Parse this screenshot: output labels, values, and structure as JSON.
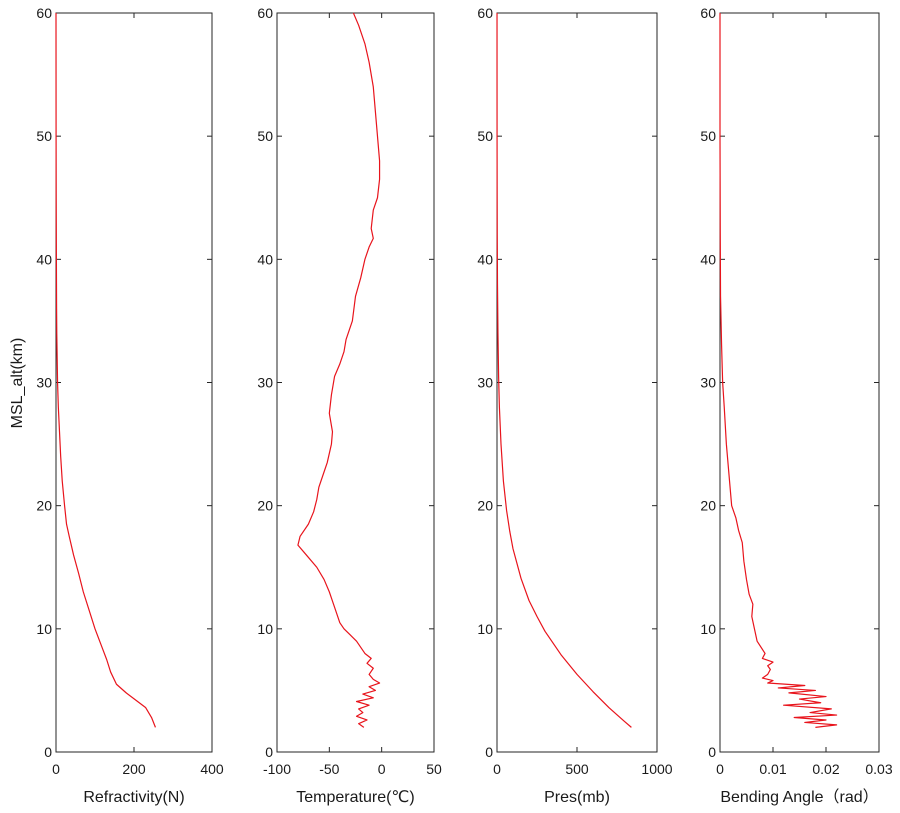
{
  "colors": {
    "line": "#e8141c",
    "axis": "#262626"
  },
  "shared_ylabel": "MSL_alt(km)",
  "chart_data": [
    {
      "type": "line",
      "xlabel": "Refractivity(N)",
      "ylabel": "MSL_alt(km)",
      "xlim": [
        0,
        400
      ],
      "ylim": [
        0,
        60
      ],
      "xticks": [
        0,
        200,
        400
      ],
      "xtick_labels": [
        "0",
        "200",
        "400"
      ],
      "yticks": [
        0,
        10,
        20,
        30,
        40,
        50,
        60
      ],
      "ytick_labels": [
        "0",
        "10",
        "20",
        "30",
        "40",
        "50",
        "60"
      ],
      "points": [
        [
          255,
          2
        ],
        [
          245,
          2.8
        ],
        [
          230,
          3.6
        ],
        [
          205,
          4.2
        ],
        [
          180,
          4.8
        ],
        [
          155,
          5.5
        ],
        [
          140,
          6.5
        ],
        [
          130,
          7.5
        ],
        [
          118,
          8.5
        ],
        [
          100,
          10
        ],
        [
          85,
          11.5
        ],
        [
          70,
          13
        ],
        [
          58,
          14.5
        ],
        [
          45,
          16
        ],
        [
          34,
          17.5
        ],
        [
          27,
          18.5
        ],
        [
          22,
          20
        ],
        [
          16,
          22
        ],
        [
          12,
          24
        ],
        [
          9,
          26
        ],
        [
          6,
          28
        ],
        [
          4,
          30
        ],
        [
          3,
          32
        ],
        [
          2,
          34
        ],
        [
          1.5,
          36
        ],
        [
          1,
          40
        ],
        [
          0.5,
          45
        ],
        [
          0.2,
          50
        ],
        [
          0.1,
          55
        ],
        [
          0,
          60
        ]
      ]
    },
    {
      "type": "line",
      "xlabel": "Temperature(℃)",
      "ylabel": "",
      "xlim": [
        -100,
        50
      ],
      "ylim": [
        0,
        60
      ],
      "xticks": [
        -100,
        -50,
        0,
        50
      ],
      "xtick_labels": [
        "-100",
        "-50",
        "0",
        "50"
      ],
      "yticks": [
        0,
        10,
        20,
        30,
        40,
        50,
        60
      ],
      "ytick_labels": [
        "0",
        "10",
        "20",
        "30",
        "40",
        "50",
        "60"
      ],
      "points": [
        [
          -17,
          2
        ],
        [
          -22,
          2.3
        ],
        [
          -14,
          2.6
        ],
        [
          -24,
          2.9
        ],
        [
          -18,
          3.2
        ],
        [
          -22,
          3.5
        ],
        [
          -12,
          3.8
        ],
        [
          -24,
          4.1
        ],
        [
          -8,
          4.4
        ],
        [
          -18,
          4.7
        ],
        [
          -6,
          5.0
        ],
        [
          -12,
          5.3
        ],
        [
          -2,
          5.6
        ],
        [
          -8,
          5.9
        ],
        [
          -12,
          6.3
        ],
        [
          -8,
          6.8
        ],
        [
          -14,
          7.2
        ],
        [
          -10,
          7.6
        ],
        [
          -16,
          8.0
        ],
        [
          -20,
          8.5
        ],
        [
          -24,
          9
        ],
        [
          -30,
          9.5
        ],
        [
          -36,
          10
        ],
        [
          -40,
          10.5
        ],
        [
          -44,
          11.5
        ],
        [
          -48,
          12.5
        ],
        [
          -50,
          13
        ],
        [
          -55,
          14
        ],
        [
          -62,
          15
        ],
        [
          -72,
          16
        ],
        [
          -80,
          16.8
        ],
        [
          -78,
          17.5
        ],
        [
          -70,
          18.5
        ],
        [
          -65,
          19.5
        ],
        [
          -62,
          20.5
        ],
        [
          -60,
          21.5
        ],
        [
          -56,
          22.5
        ],
        [
          -52,
          23.5
        ],
        [
          -48,
          25
        ],
        [
          -47,
          26
        ],
        [
          -50,
          27.5
        ],
        [
          -48,
          29
        ],
        [
          -45,
          30.5
        ],
        [
          -40,
          31.5
        ],
        [
          -36,
          32.5
        ],
        [
          -34,
          33.5
        ],
        [
          -28,
          35
        ],
        [
          -25,
          37
        ],
        [
          -20,
          38.5
        ],
        [
          -16,
          40
        ],
        [
          -12,
          41
        ],
        [
          -8,
          41.7
        ],
        [
          -10,
          42.5
        ],
        [
          -8,
          44
        ],
        [
          -4,
          45
        ],
        [
          -2,
          46.5
        ],
        [
          -2,
          48
        ],
        [
          -4,
          50
        ],
        [
          -6,
          52
        ],
        [
          -8,
          54
        ],
        [
          -12,
          56
        ],
        [
          -16,
          57.5
        ],
        [
          -22,
          59
        ],
        [
          -27,
          60
        ]
      ]
    },
    {
      "type": "line",
      "xlabel": "Pres(mb)",
      "ylabel": "",
      "xlim": [
        0,
        1000
      ],
      "ylim": [
        0,
        60
      ],
      "xticks": [
        0,
        500,
        1000
      ],
      "xtick_labels": [
        "0",
        "500",
        "1000"
      ],
      "yticks": [
        0,
        10,
        20,
        30,
        40,
        50,
        60
      ],
      "ytick_labels": [
        "0",
        "10",
        "20",
        "30",
        "40",
        "50",
        "60"
      ],
      "points": [
        [
          840,
          2
        ],
        [
          795,
          2.5
        ],
        [
          700,
          3.6
        ],
        [
          600,
          4.9
        ],
        [
          500,
          6.3
        ],
        [
          400,
          7.9
        ],
        [
          300,
          9.8
        ],
        [
          250,
          11
        ],
        [
          200,
          12.3
        ],
        [
          150,
          14.1
        ],
        [
          100,
          16.5
        ],
        [
          80,
          17.9
        ],
        [
          60,
          19.6
        ],
        [
          40,
          22
        ],
        [
          25,
          25
        ],
        [
          15,
          28
        ],
        [
          10,
          30.5
        ],
        [
          6,
          34
        ],
        [
          3,
          38
        ],
        [
          1.5,
          42
        ],
        [
          0.8,
          46
        ],
        [
          0.4,
          50
        ],
        [
          0.2,
          55
        ],
        [
          0.1,
          60
        ]
      ]
    },
    {
      "type": "line",
      "xlabel": "Bending Angle（rad）",
      "ylabel": "",
      "xlim": [
        0,
        0.03
      ],
      "ylim": [
        0,
        60
      ],
      "xticks": [
        0,
        0.01,
        0.02,
        0.03
      ],
      "xtick_labels": [
        "0",
        "0.01",
        "0.02",
        "0.03"
      ],
      "yticks": [
        0,
        10,
        20,
        30,
        40,
        50,
        60
      ],
      "ytick_labels": [
        "0",
        "10",
        "20",
        "30",
        "40",
        "50",
        "60"
      ],
      "points": [
        [
          0.018,
          2
        ],
        [
          0.022,
          2.2
        ],
        [
          0.016,
          2.4
        ],
        [
          0.02,
          2.6
        ],
        [
          0.014,
          2.8
        ],
        [
          0.022,
          3.0
        ],
        [
          0.017,
          3.2
        ],
        [
          0.021,
          3.5
        ],
        [
          0.012,
          3.8
        ],
        [
          0.019,
          4.0
        ],
        [
          0.015,
          4.3
        ],
        [
          0.02,
          4.5
        ],
        [
          0.013,
          4.8
        ],
        [
          0.018,
          5.0
        ],
        [
          0.011,
          5.2
        ],
        [
          0.016,
          5.4
        ],
        [
          0.009,
          5.6
        ],
        [
          0.01,
          5.8
        ],
        [
          0.008,
          6.0
        ],
        [
          0.009,
          6.3
        ],
        [
          0.0095,
          6.7
        ],
        [
          0.009,
          7.0
        ],
        [
          0.01,
          7.3
        ],
        [
          0.008,
          7.6
        ],
        [
          0.0085,
          8
        ],
        [
          0.007,
          9
        ],
        [
          0.0065,
          10
        ],
        [
          0.006,
          11
        ],
        [
          0.0062,
          12
        ],
        [
          0.0055,
          12.8
        ],
        [
          0.005,
          14
        ],
        [
          0.0045,
          15.5
        ],
        [
          0.0042,
          17
        ],
        [
          0.0035,
          18
        ],
        [
          0.003,
          19
        ],
        [
          0.0022,
          20
        ],
        [
          0.0018,
          22
        ],
        [
          0.0012,
          25
        ],
        [
          0.0008,
          28
        ],
        [
          0.0005,
          30
        ],
        [
          0.0003,
          33
        ],
        [
          0.0001,
          37
        ],
        [
          5e-05,
          42
        ],
        [
          0,
          50
        ],
        [
          0,
          60
        ]
      ]
    }
  ]
}
